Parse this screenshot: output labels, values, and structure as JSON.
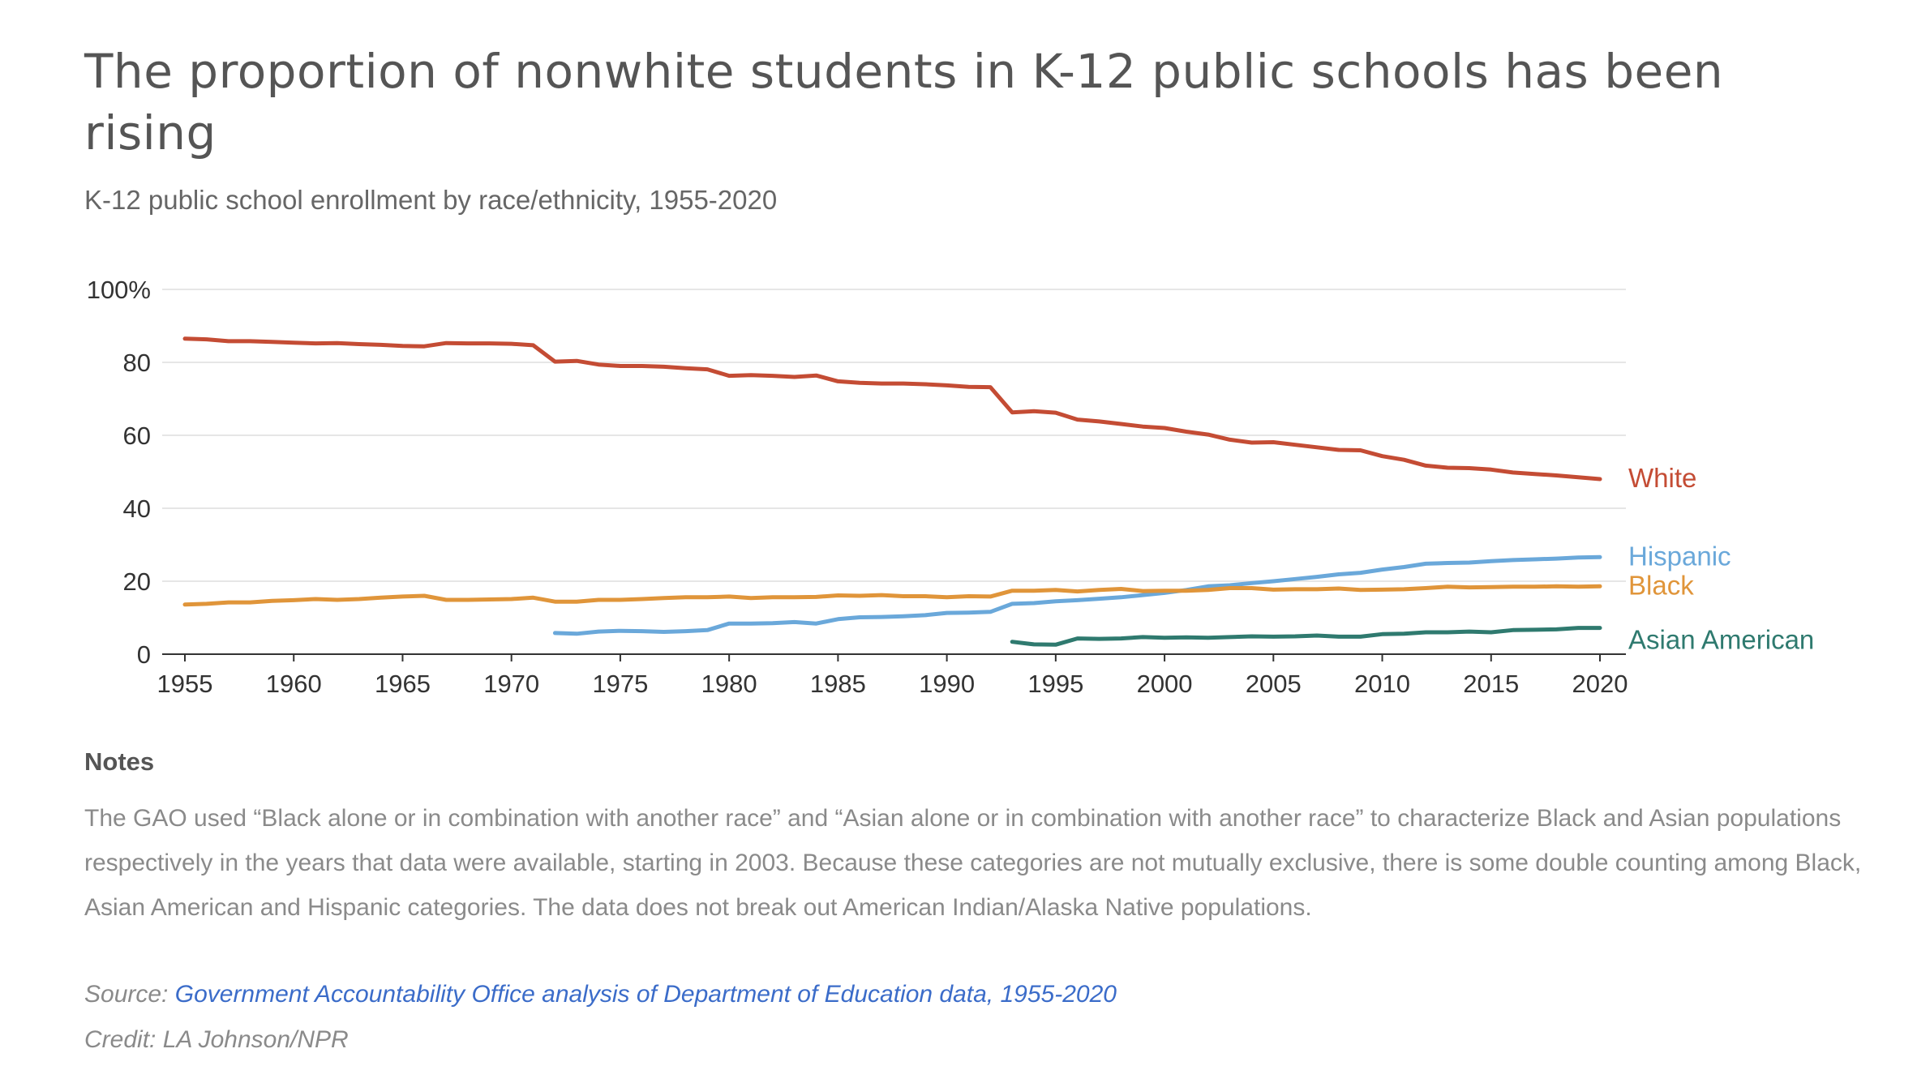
{
  "header": {
    "title": "The proportion of nonwhite students in K-12 public schools has been rising",
    "subtitle": "K-12 public school enrollment by race/ethnicity, 1955-2020"
  },
  "chart_data": {
    "type": "line",
    "title": "The proportion of nonwhite students in K-12 public schools has been rising",
    "subtitle": "K-12 public school enrollment by race/ethnicity, 1955-2020",
    "xlabel": "",
    "ylabel": "",
    "xlim": [
      1955,
      2020
    ],
    "ylim": [
      0,
      100
    ],
    "x_ticks": [
      "1955",
      "1960",
      "1965",
      "1970",
      "1975",
      "1980",
      "1985",
      "1990",
      "1995",
      "2000",
      "2005",
      "2010",
      "2015",
      "2020"
    ],
    "y_ticks": [
      "0",
      "20",
      "40",
      "60",
      "80",
      "100%"
    ],
    "grid": "horizontal",
    "legend": "direct labels at line ends (right)",
    "series": [
      {
        "name": "White",
        "color": "#c44c34",
        "points": [
          [
            1955,
            86.5
          ],
          [
            1956,
            86.3
          ],
          [
            1957,
            85.8
          ],
          [
            1958,
            85.8
          ],
          [
            1959,
            85.6
          ],
          [
            1960,
            85.4
          ],
          [
            1961,
            85.2
          ],
          [
            1962,
            85.3
          ],
          [
            1963,
            85.0
          ],
          [
            1964,
            84.8
          ],
          [
            1965,
            84.5
          ],
          [
            1966,
            84.4
          ],
          [
            1967,
            85.3
          ],
          [
            1968,
            85.2
          ],
          [
            1969,
            85.2
          ],
          [
            1970,
            85.1
          ],
          [
            1971,
            84.7
          ],
          [
            1972,
            80.2
          ],
          [
            1973,
            80.4
          ],
          [
            1974,
            79.4
          ],
          [
            1975,
            79.0
          ],
          [
            1976,
            79.0
          ],
          [
            1977,
            78.8
          ],
          [
            1978,
            78.4
          ],
          [
            1979,
            78.1
          ],
          [
            1980,
            76.3
          ],
          [
            1981,
            76.5
          ],
          [
            1982,
            76.3
          ],
          [
            1983,
            76.0
          ],
          [
            1984,
            76.4
          ],
          [
            1985,
            74.8
          ],
          [
            1986,
            74.4
          ],
          [
            1987,
            74.2
          ],
          [
            1988,
            74.2
          ],
          [
            1989,
            74.0
          ],
          [
            1990,
            73.7
          ],
          [
            1991,
            73.3
          ],
          [
            1992,
            73.2
          ],
          [
            1993,
            66.3
          ],
          [
            1994,
            66.6
          ],
          [
            1995,
            66.2
          ],
          [
            1996,
            64.3
          ],
          [
            1997,
            63.8
          ],
          [
            1998,
            63.1
          ],
          [
            1999,
            62.4
          ],
          [
            2000,
            62.0
          ],
          [
            2001,
            61.0
          ],
          [
            2002,
            60.2
          ],
          [
            2003,
            58.8
          ],
          [
            2004,
            58.0
          ],
          [
            2005,
            58.1
          ],
          [
            2006,
            57.4
          ],
          [
            2007,
            56.7
          ],
          [
            2008,
            56.0
          ],
          [
            2009,
            55.9
          ],
          [
            2010,
            54.3
          ],
          [
            2011,
            53.3
          ],
          [
            2012,
            51.7
          ],
          [
            2013,
            51.1
          ],
          [
            2014,
            51.0
          ],
          [
            2015,
            50.6
          ],
          [
            2016,
            49.8
          ],
          [
            2017,
            49.4
          ],
          [
            2018,
            49.0
          ],
          [
            2019,
            48.5
          ],
          [
            2020,
            48.0
          ]
        ]
      },
      {
        "name": "Hispanic",
        "color": "#6aa8da",
        "points": [
          [
            1972,
            5.8
          ],
          [
            1973,
            5.6
          ],
          [
            1974,
            6.2
          ],
          [
            1975,
            6.4
          ],
          [
            1976,
            6.3
          ],
          [
            1977,
            6.1
          ],
          [
            1978,
            6.3
          ],
          [
            1979,
            6.6
          ],
          [
            1980,
            8.4
          ],
          [
            1981,
            8.4
          ],
          [
            1982,
            8.5
          ],
          [
            1983,
            8.8
          ],
          [
            1984,
            8.4
          ],
          [
            1985,
            9.6
          ],
          [
            1986,
            10.1
          ],
          [
            1987,
            10.2
          ],
          [
            1988,
            10.4
          ],
          [
            1989,
            10.7
          ],
          [
            1990,
            11.3
          ],
          [
            1991,
            11.4
          ],
          [
            1992,
            11.6
          ],
          [
            1993,
            13.8
          ],
          [
            1994,
            14.0
          ],
          [
            1995,
            14.5
          ],
          [
            1996,
            14.8
          ],
          [
            1997,
            15.2
          ],
          [
            1998,
            15.6
          ],
          [
            1999,
            16.2
          ],
          [
            2000,
            16.8
          ],
          [
            2001,
            17.6
          ],
          [
            2002,
            18.6
          ],
          [
            2003,
            18.9
          ],
          [
            2004,
            19.5
          ],
          [
            2005,
            20.0
          ],
          [
            2006,
            20.6
          ],
          [
            2007,
            21.2
          ],
          [
            2008,
            21.9
          ],
          [
            2009,
            22.3
          ],
          [
            2010,
            23.2
          ],
          [
            2011,
            23.9
          ],
          [
            2012,
            24.8
          ],
          [
            2013,
            25.0
          ],
          [
            2014,
            25.1
          ],
          [
            2015,
            25.5
          ],
          [
            2016,
            25.8
          ],
          [
            2017,
            26.0
          ],
          [
            2018,
            26.2
          ],
          [
            2019,
            26.5
          ],
          [
            2020,
            26.6
          ]
        ]
      },
      {
        "name": "Black",
        "color": "#e0953a",
        "points": [
          [
            1955,
            13.6
          ],
          [
            1956,
            13.8
          ],
          [
            1957,
            14.2
          ],
          [
            1958,
            14.2
          ],
          [
            1959,
            14.6
          ],
          [
            1960,
            14.8
          ],
          [
            1961,
            15.1
          ],
          [
            1962,
            14.9
          ],
          [
            1963,
            15.1
          ],
          [
            1964,
            15.5
          ],
          [
            1965,
            15.8
          ],
          [
            1966,
            16.0
          ],
          [
            1967,
            14.9
          ],
          [
            1968,
            14.9
          ],
          [
            1969,
            15.0
          ],
          [
            1970,
            15.1
          ],
          [
            1971,
            15.5
          ],
          [
            1972,
            14.4
          ],
          [
            1973,
            14.4
          ],
          [
            1974,
            14.9
          ],
          [
            1975,
            14.9
          ],
          [
            1976,
            15.1
          ],
          [
            1977,
            15.4
          ],
          [
            1978,
            15.6
          ],
          [
            1979,
            15.6
          ],
          [
            1980,
            15.8
          ],
          [
            1981,
            15.4
          ],
          [
            1982,
            15.6
          ],
          [
            1983,
            15.6
          ],
          [
            1984,
            15.7
          ],
          [
            1985,
            16.1
          ],
          [
            1986,
            16.0
          ],
          [
            1987,
            16.2
          ],
          [
            1988,
            15.9
          ],
          [
            1989,
            15.9
          ],
          [
            1990,
            15.6
          ],
          [
            1991,
            15.9
          ],
          [
            1992,
            15.8
          ],
          [
            1993,
            17.4
          ],
          [
            1994,
            17.4
          ],
          [
            1995,
            17.6
          ],
          [
            1996,
            17.2
          ],
          [
            1997,
            17.6
          ],
          [
            1998,
            17.9
          ],
          [
            1999,
            17.3
          ],
          [
            2000,
            17.4
          ],
          [
            2001,
            17.4
          ],
          [
            2002,
            17.6
          ],
          [
            2003,
            18.1
          ],
          [
            2004,
            18.1
          ],
          [
            2005,
            17.7
          ],
          [
            2006,
            17.8
          ],
          [
            2007,
            17.8
          ],
          [
            2008,
            18.0
          ],
          [
            2009,
            17.6
          ],
          [
            2010,
            17.7
          ],
          [
            2011,
            17.8
          ],
          [
            2012,
            18.1
          ],
          [
            2013,
            18.5
          ],
          [
            2014,
            18.3
          ],
          [
            2015,
            18.4
          ],
          [
            2016,
            18.5
          ],
          [
            2017,
            18.5
          ],
          [
            2018,
            18.6
          ],
          [
            2019,
            18.5
          ],
          [
            2020,
            18.6
          ]
        ]
      },
      {
        "name": "Asian American",
        "color": "#2f7a6f",
        "points": [
          [
            1993,
            3.4
          ],
          [
            1994,
            2.7
          ],
          [
            1995,
            2.6
          ],
          [
            1996,
            4.3
          ],
          [
            1997,
            4.2
          ],
          [
            1998,
            4.3
          ],
          [
            1999,
            4.7
          ],
          [
            2000,
            4.5
          ],
          [
            2001,
            4.6
          ],
          [
            2002,
            4.5
          ],
          [
            2003,
            4.7
          ],
          [
            2004,
            4.9
          ],
          [
            2005,
            4.8
          ],
          [
            2006,
            4.9
          ],
          [
            2007,
            5.1
          ],
          [
            2008,
            4.8
          ],
          [
            2009,
            4.8
          ],
          [
            2010,
            5.5
          ],
          [
            2011,
            5.6
          ],
          [
            2012,
            6.0
          ],
          [
            2013,
            6.0
          ],
          [
            2014,
            6.2
          ],
          [
            2015,
            6.0
          ],
          [
            2016,
            6.6
          ],
          [
            2017,
            6.7
          ],
          [
            2018,
            6.8
          ],
          [
            2019,
            7.2
          ],
          [
            2020,
            7.2
          ]
        ]
      }
    ]
  },
  "notes": {
    "heading": "Notes",
    "text": "The GAO used “Black alone or in combination with another race” and “Asian alone or in combination with another race” to characterize Black and Asian populations respectively in the years that data were available, starting in 2003. Because these categories are not mutually exclusive, there is some double counting among Black, Asian American and Hispanic categories. The data does not break out American Indian/Alaska Native populations."
  },
  "footer": {
    "source_label": "Source:",
    "source_link": "Government Accountability Office analysis of Department of Education data, 1955-2020",
    "credit": "Credit: LA Johnson/NPR"
  }
}
